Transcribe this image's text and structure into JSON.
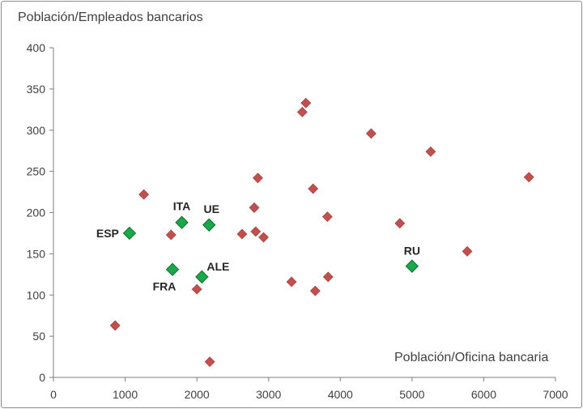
{
  "chart_data": {
    "type": "scatter",
    "ylabel": "Población/Empleados bancarios",
    "xlabel": "Población/Oficina bancaria",
    "xlim": [
      0,
      7000
    ],
    "ylim": [
      0,
      400
    ],
    "x_ticks": [
      0,
      1000,
      2000,
      3000,
      4000,
      5000,
      6000,
      7000
    ],
    "y_ticks": [
      0,
      50,
      100,
      150,
      200,
      250,
      300,
      350,
      400
    ],
    "grid": false,
    "series": [
      {
        "color": "#c0504d",
        "marker": "diamond",
        "points": [
          {
            "x": 860,
            "y": 63
          },
          {
            "x": 1260,
            "y": 222
          },
          {
            "x": 1640,
            "y": 173
          },
          {
            "x": 2000,
            "y": 107
          },
          {
            "x": 2180,
            "y": 19
          },
          {
            "x": 2630,
            "y": 174
          },
          {
            "x": 2800,
            "y": 206
          },
          {
            "x": 2820,
            "y": 177
          },
          {
            "x": 2850,
            "y": 242
          },
          {
            "x": 2930,
            "y": 170
          },
          {
            "x": 3320,
            "y": 116
          },
          {
            "x": 3470,
            "y": 322
          },
          {
            "x": 3520,
            "y": 333
          },
          {
            "x": 3620,
            "y": 229
          },
          {
            "x": 3650,
            "y": 105
          },
          {
            "x": 3820,
            "y": 195
          },
          {
            "x": 3830,
            "y": 122
          },
          {
            "x": 4430,
            "y": 296
          },
          {
            "x": 4830,
            "y": 187
          },
          {
            "x": 5260,
            "y": 274
          },
          {
            "x": 5770,
            "y": 153
          },
          {
            "x": 6630,
            "y": 243
          }
        ]
      },
      {
        "color": "#1aa84a",
        "marker": "diamond",
        "points": [
          {
            "x": 1060,
            "y": 175,
            "label": "ESP"
          },
          {
            "x": 1790,
            "y": 188,
            "label": "ITA"
          },
          {
            "x": 2170,
            "y": 185,
            "label": "UE"
          },
          {
            "x": 1660,
            "y": 131,
            "label": "FRA"
          },
          {
            "x": 2070,
            "y": 122,
            "label": "ALE"
          },
          {
            "x": 5000,
            "y": 135,
            "label": "RU"
          }
        ]
      }
    ]
  }
}
